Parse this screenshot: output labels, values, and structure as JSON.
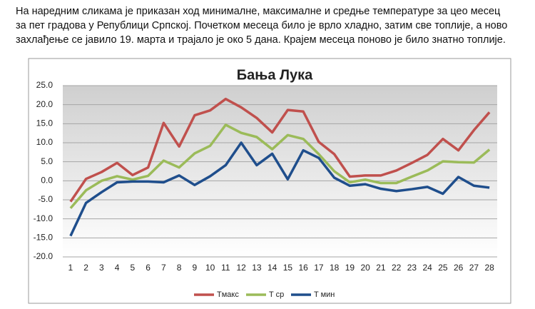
{
  "text": [
    "На наредним сликама је приказан ход минималне, максималне и средње температуре  за цео месец",
    "за пет градова у Републици Српској. Почетком месеца било је врло хладно, затим све топлије, а ново",
    "захлађење се јавило 19. марта и трајало је око 5 дана. Крајем месеца поново је било знатно топлије."
  ],
  "chart_data": {
    "type": "line",
    "title": "Бања Лука",
    "categories": [
      "1",
      "2",
      "3",
      "4",
      "5",
      "6",
      "7",
      "8",
      "9",
      "10",
      "11",
      "12",
      "13",
      "14",
      "15",
      "16",
      "17",
      "18",
      "19",
      "20",
      "21",
      "22",
      "23",
      "24",
      "25",
      "26",
      "27",
      "28"
    ],
    "series": [
      {
        "name": "Tмакс",
        "color": "#c0504d",
        "values": [
          -5.5,
          0.5,
          2.3,
          4.7,
          1.5,
          3.5,
          15.2,
          9,
          17.2,
          18.5,
          21.5,
          19.3,
          16.5,
          12.7,
          18.6,
          18.2,
          10.2,
          7,
          1.1,
          1.4,
          1.4,
          2.7,
          4.7,
          6.8,
          11,
          8,
          13.3,
          18
        ]
      },
      {
        "name": "T ср",
        "color": "#9bbb59",
        "values": [
          -7.2,
          -2.5,
          0,
          1.2,
          0.3,
          1.3,
          5.3,
          3.5,
          7.2,
          9.2,
          14.7,
          12.6,
          11.5,
          8.3,
          12,
          11,
          7,
          2.5,
          -0.4,
          0.3,
          -0.6,
          -0.6,
          1.1,
          2.7,
          5.1,
          4.9,
          4.8,
          8.2
        ]
      },
      {
        "name": "T мин",
        "color": "#1f4e8c",
        "values": [
          -14.5,
          -5.8,
          -3,
          -0.4,
          -0.2,
          -0.2,
          -0.4,
          1.4,
          -1.1,
          1.2,
          4.1,
          10,
          4.1,
          7.1,
          0.4,
          8,
          6,
          0.8,
          -1.3,
          -0.9,
          -2.1,
          -2.7,
          -2.2,
          -1.6,
          -3.4,
          1,
          -1.3,
          -1.8
        ]
      }
    ],
    "ylim": [
      -20,
      25
    ],
    "yticks": [
      {
        "value": -20,
        "label": "-20.0"
      },
      {
        "value": -15,
        "label": "-15.0"
      },
      {
        "value": -10,
        "label": "-10.0"
      },
      {
        "value": -5,
        "label": "-5.0"
      },
      {
        "value": 0,
        "label": "0.0"
      },
      {
        "value": 5,
        "label": "5.0"
      },
      {
        "value": 10,
        "label": "10.0"
      },
      {
        "value": 15,
        "label": "15.0"
      },
      {
        "value": 20,
        "label": "20.0"
      },
      {
        "value": 25,
        "label": "25.0"
      }
    ],
    "grid": true,
    "legend": "bottom"
  }
}
